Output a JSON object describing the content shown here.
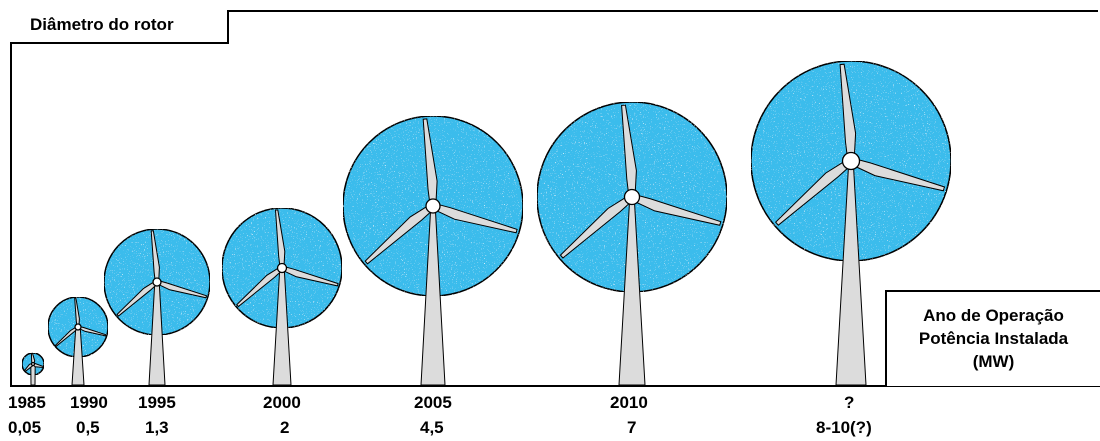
{
  "title": "Diâmetro do rotor",
  "legend": {
    "line1": "Ano de Operação",
    "line2": "Potência Instalada",
    "line3": "(MW)"
  },
  "colors": {
    "rotor_fill": "#3bbcec",
    "tower_fill": "#dcdcdc",
    "outline": "#000000"
  },
  "turbines": [
    {
      "year": "1985",
      "power": "0,05"
    },
    {
      "year": "1990",
      "power": "0,5"
    },
    {
      "year": "1995",
      "power": "1,3"
    },
    {
      "year": "2000",
      "power": "2"
    },
    {
      "year": "2005",
      "power": "4,5"
    },
    {
      "year": "2010",
      "power": "7"
    },
    {
      "year": "?",
      "power": "8-10(?)"
    }
  ]
}
